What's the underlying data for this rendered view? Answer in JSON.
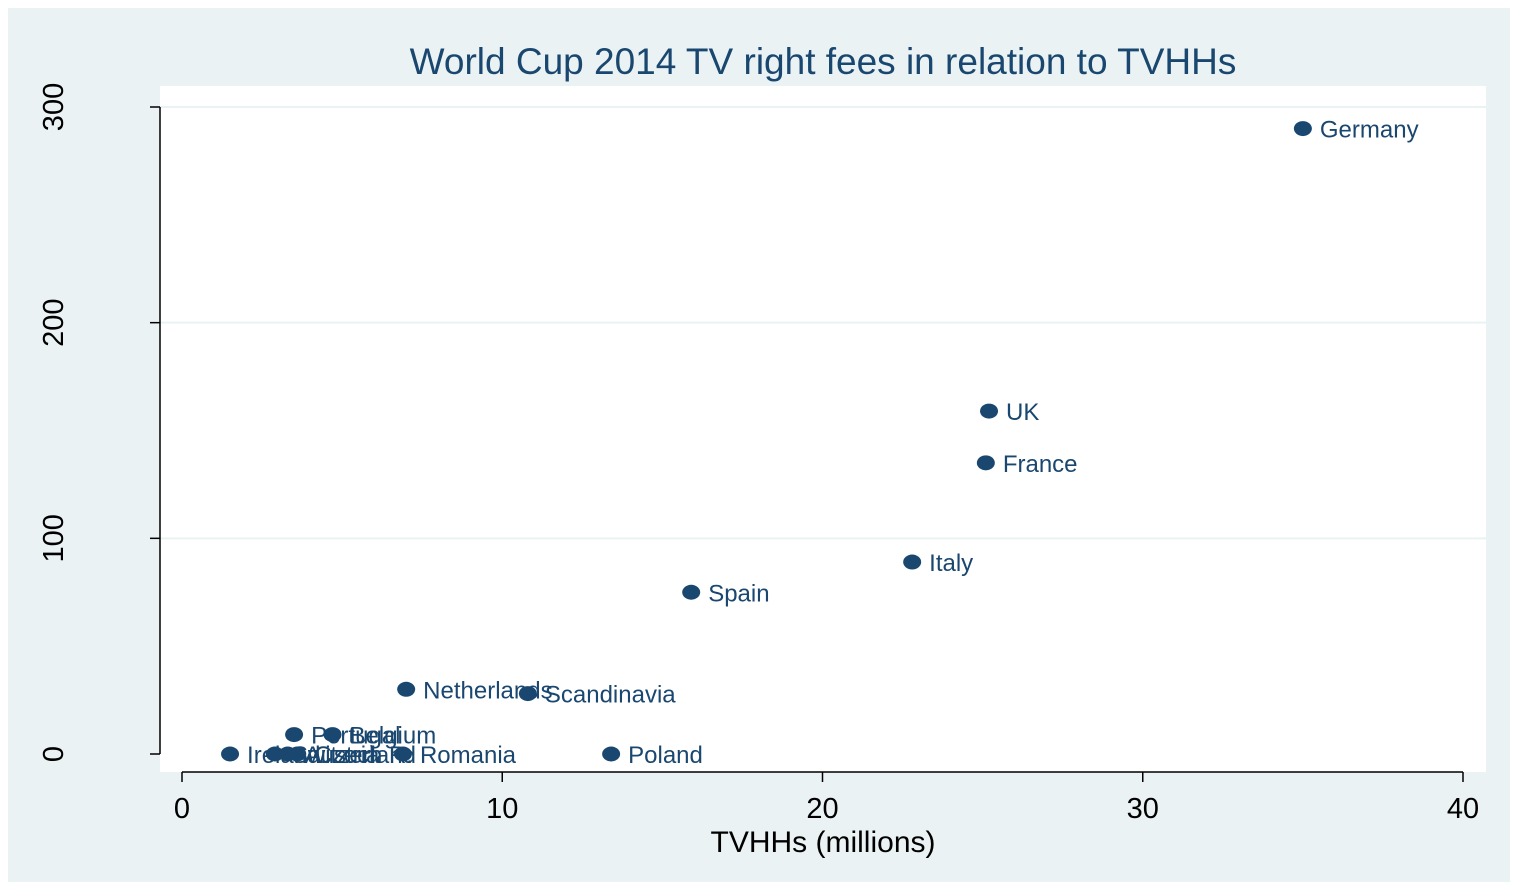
{
  "chart_data": {
    "type": "scatter",
    "title": "World Cup 2014 TV right fees in relation to TVHHs",
    "xlabel": "TVHHs (millions)",
    "ylabel": "",
    "xlim": [
      0,
      40
    ],
    "ylim": [
      0,
      300
    ],
    "x_ticks": [
      "0",
      "10",
      "20",
      "30",
      "40"
    ],
    "y_ticks": [
      "0",
      "100",
      "200",
      "300"
    ],
    "x_tick_values": [
      0,
      10,
      20,
      30,
      40
    ],
    "y_tick_values": [
      0,
      100,
      200,
      300
    ],
    "grid": "horizontal",
    "points": [
      {
        "label": "Germany",
        "x": 35.0,
        "y": 290
      },
      {
        "label": "UK",
        "x": 25.2,
        "y": 159
      },
      {
        "label": "France",
        "x": 25.1,
        "y": 135
      },
      {
        "label": "Italy",
        "x": 22.8,
        "y": 89
      },
      {
        "label": "Spain",
        "x": 15.9,
        "y": 75
      },
      {
        "label": "Netherlands",
        "x": 7.0,
        "y": 30
      },
      {
        "label": "Scandinavia",
        "x": 10.8,
        "y": 28
      },
      {
        "label": "Portugal",
        "x": 3.5,
        "y": 9
      },
      {
        "label": "Belgium",
        "x": 4.7,
        "y": 9
      },
      {
        "label": "Ireland",
        "x": 1.5,
        "y": 0
      },
      {
        "label": "Switzerland",
        "x": 2.9,
        "y": 0
      },
      {
        "label": "Austria",
        "x": 3.3,
        "y": 0
      },
      {
        "label": "Czech R.",
        "x": 3.6,
        "y": 0
      },
      {
        "label": "Romania",
        "x": 6.9,
        "y": 0
      },
      {
        "label": "Poland",
        "x": 13.4,
        "y": 0
      }
    ],
    "colors": {
      "marker": "#1a476f",
      "text": "#1a476f",
      "outer_background": "#eaf2f3",
      "plot_background": "#ffffff",
      "grid": "#eaf2f3",
      "axis": "#000000"
    }
  }
}
